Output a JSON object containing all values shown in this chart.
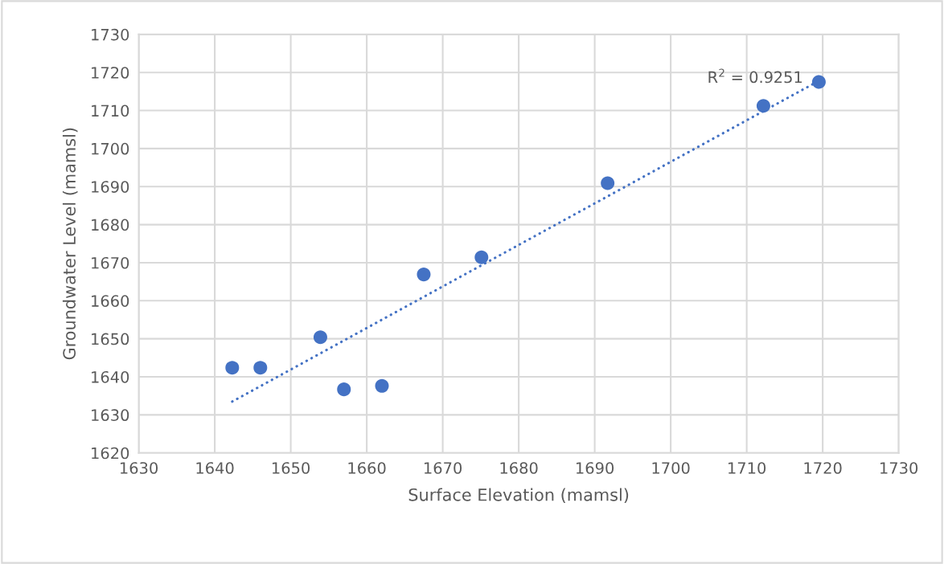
{
  "chart_data": {
    "type": "scatter",
    "xlabel": "Surface Elevation (mamsl)",
    "ylabel": "Groundwater Level (mamsl)",
    "x": [
      1642.3,
      1646.0,
      1653.9,
      1657.0,
      1662.0,
      1667.5,
      1675.1,
      1691.7,
      1712.2,
      1719.5
    ],
    "series": [
      {
        "color": "#4472c4",
        "marker": "circle",
        "values": [
          1642.4,
          1642.4,
          1650.4,
          1636.7,
          1637.6,
          1666.9,
          1671.4,
          1690.9,
          1711.2,
          1717.5
        ]
      },
      {
        "type": "line",
        "color": "#4472c4",
        "line_style": "dotted",
        "x": [
          1642.3,
          1719.5
        ],
        "values": [
          1633.5,
          1717.8
        ]
      }
    ],
    "annotations": [
      {
        "text": "R$^{2}$ = 0.9251",
        "x": 1719.5,
        "y": 1717.8
      }
    ],
    "xlim": [
      1630,
      1730
    ],
    "xticks": [
      1630,
      1640,
      1650,
      1660,
      1670,
      1680,
      1690,
      1700,
      1710,
      1720,
      1730
    ],
    "ylim": [
      1620,
      1730
    ],
    "yticks": [
      1620,
      1630,
      1640,
      1650,
      1660,
      1670,
      1680,
      1690,
      1700,
      1710,
      1720,
      1730
    ],
    "grid": true
  }
}
